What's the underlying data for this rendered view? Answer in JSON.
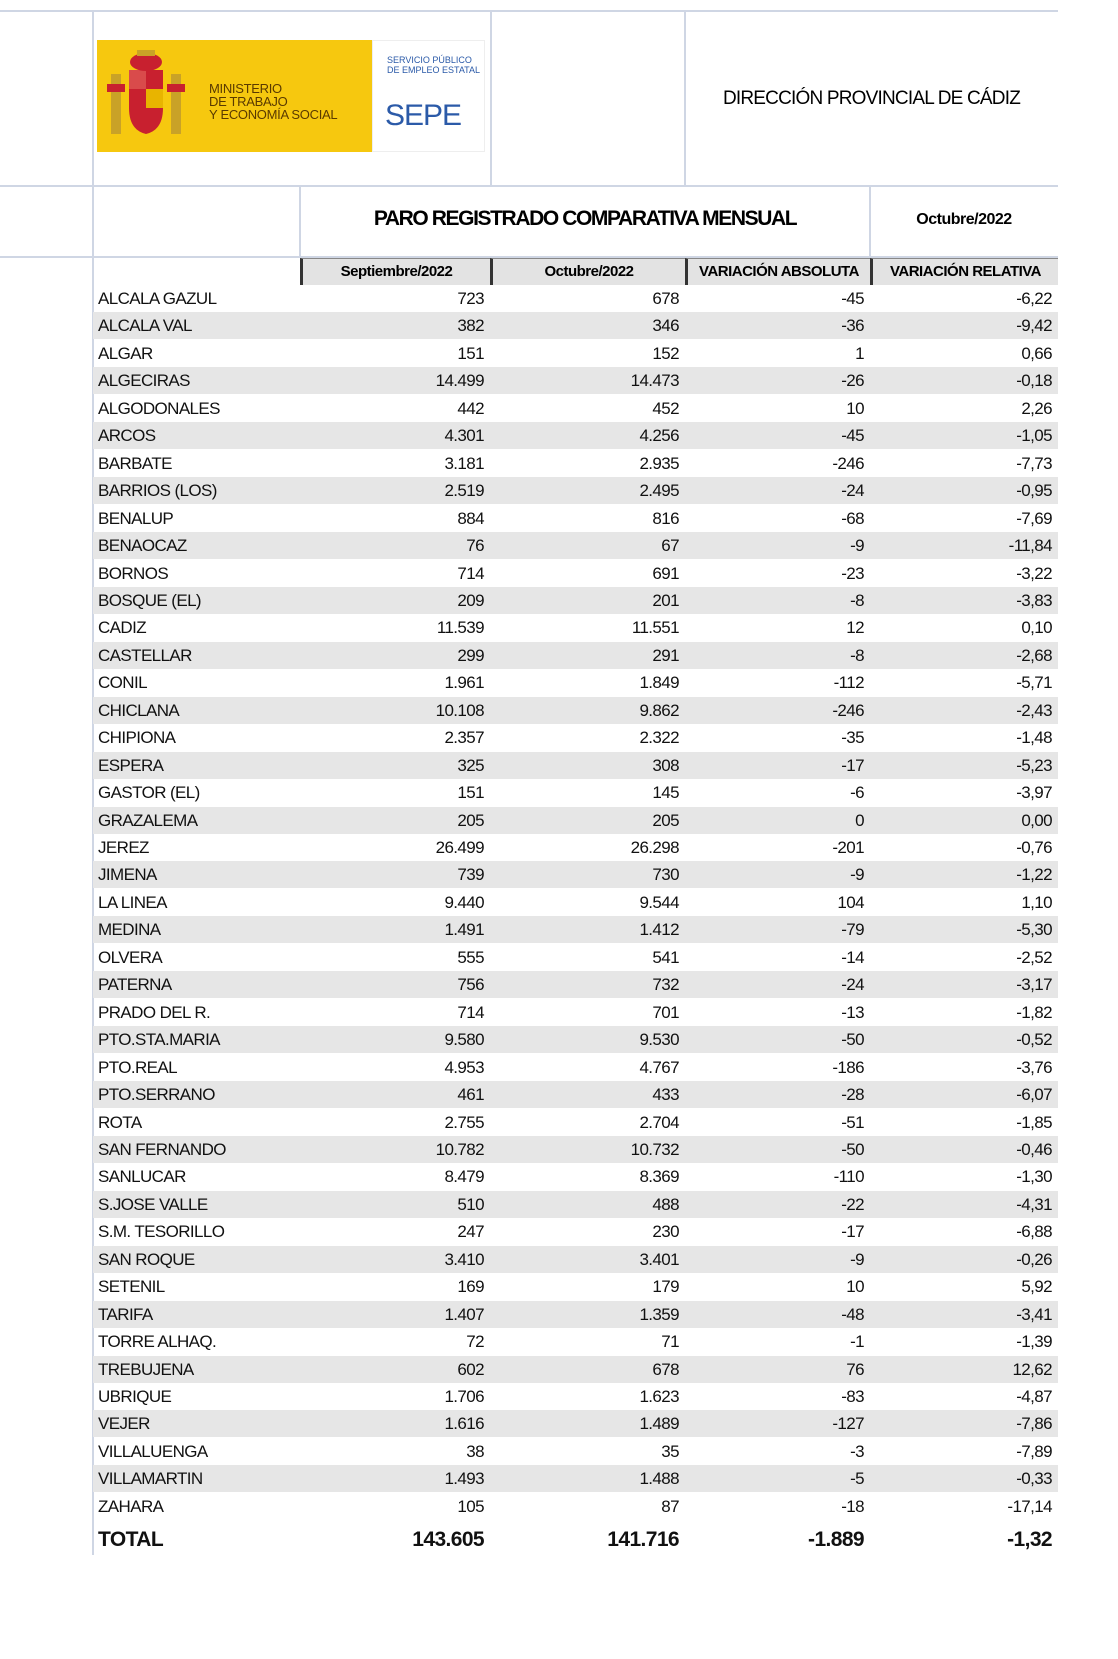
{
  "header": {
    "ministry": [
      "MINISTERIO",
      "DE TRABAJO",
      "Y ECONOMÍA SOCIAL"
    ],
    "service": [
      "SERVICIO PÚBLICO",
      "DE EMPLEO ESTATAL"
    ],
    "sepe": "SEPE",
    "office": "DIRECCIÓN PROVINCIAL DE CÁDIZ"
  },
  "table": {
    "title": "PARO REGISTRADO COMPARATIVA MENSUAL",
    "period": "Octubre/2022",
    "columns": [
      "Septiembre/2022",
      "Octubre/2022",
      "VARIACIÓN ABSOLUTA",
      "VARIACIÓN RELATIVA"
    ],
    "rows": [
      [
        "ALCALA GAZUL",
        "723",
        "678",
        "-45",
        "-6,22"
      ],
      [
        "ALCALA VAL",
        "382",
        "346",
        "-36",
        "-9,42"
      ],
      [
        "ALGAR",
        "151",
        "152",
        "1",
        "0,66"
      ],
      [
        "ALGECIRAS",
        "14.499",
        "14.473",
        "-26",
        "-0,18"
      ],
      [
        "ALGODONALES",
        "442",
        "452",
        "10",
        "2,26"
      ],
      [
        "ARCOS",
        "4.301",
        "4.256",
        "-45",
        "-1,05"
      ],
      [
        "BARBATE",
        "3.181",
        "2.935",
        "-246",
        "-7,73"
      ],
      [
        "BARRIOS (LOS)",
        "2.519",
        "2.495",
        "-24",
        "-0,95"
      ],
      [
        "BENALUP",
        "884",
        "816",
        "-68",
        "-7,69"
      ],
      [
        "BENAOCAZ",
        "76",
        "67",
        "-9",
        "-11,84"
      ],
      [
        "BORNOS",
        "714",
        "691",
        "-23",
        "-3,22"
      ],
      [
        "BOSQUE (EL)",
        "209",
        "201",
        "-8",
        "-3,83"
      ],
      [
        "CADIZ",
        "11.539",
        "11.551",
        "12",
        "0,10"
      ],
      [
        "CASTELLAR",
        "299",
        "291",
        "-8",
        "-2,68"
      ],
      [
        "CONIL",
        "1.961",
        "1.849",
        "-112",
        "-5,71"
      ],
      [
        "CHICLANA",
        "10.108",
        "9.862",
        "-246",
        "-2,43"
      ],
      [
        "CHIPIONA",
        "2.357",
        "2.322",
        "-35",
        "-1,48"
      ],
      [
        "ESPERA",
        "325",
        "308",
        "-17",
        "-5,23"
      ],
      [
        "GASTOR (EL)",
        "151",
        "145",
        "-6",
        "-3,97"
      ],
      [
        "GRAZALEMA",
        "205",
        "205",
        "0",
        "0,00"
      ],
      [
        "JEREZ",
        "26.499",
        "26.298",
        "-201",
        "-0,76"
      ],
      [
        "JIMENA",
        "739",
        "730",
        "-9",
        "-1,22"
      ],
      [
        "LA LINEA",
        "9.440",
        "9.544",
        "104",
        "1,10"
      ],
      [
        "MEDINA",
        "1.491",
        "1.412",
        "-79",
        "-5,30"
      ],
      [
        "OLVERA",
        "555",
        "541",
        "-14",
        "-2,52"
      ],
      [
        "PATERNA",
        "756",
        "732",
        "-24",
        "-3,17"
      ],
      [
        "PRADO DEL R.",
        "714",
        "701",
        "-13",
        "-1,82"
      ],
      [
        "PTO.STA.MARIA",
        "9.580",
        "9.530",
        "-50",
        "-0,52"
      ],
      [
        "PTO.REAL",
        "4.953",
        "4.767",
        "-186",
        "-3,76"
      ],
      [
        "PTO.SERRANO",
        "461",
        "433",
        "-28",
        "-6,07"
      ],
      [
        "ROTA",
        "2.755",
        "2.704",
        "-51",
        "-1,85"
      ],
      [
        "SAN FERNANDO",
        "10.782",
        "10.732",
        "-50",
        "-0,46"
      ],
      [
        "SANLUCAR",
        "8.479",
        "8.369",
        "-110",
        "-1,30"
      ],
      [
        "S.JOSE VALLE",
        "510",
        "488",
        "-22",
        "-4,31"
      ],
      [
        "S.M. TESORILLO",
        "247",
        "230",
        "-17",
        "-6,88"
      ],
      [
        "SAN ROQUE",
        "3.410",
        "3.401",
        "-9",
        "-0,26"
      ],
      [
        "SETENIL",
        "169",
        "179",
        "10",
        "5,92"
      ],
      [
        "TARIFA",
        "1.407",
        "1.359",
        "-48",
        "-3,41"
      ],
      [
        "TORRE ALHAQ.",
        "72",
        "71",
        "-1",
        "-1,39"
      ],
      [
        "TREBUJENA",
        "602",
        "678",
        "76",
        "12,62"
      ],
      [
        "UBRIQUE",
        "1.706",
        "1.623",
        "-83",
        "-4,87"
      ],
      [
        "VEJER",
        "1.616",
        "1.489",
        "-127",
        "-7,86"
      ],
      [
        "VILLALUENGA",
        "38",
        "35",
        "-3",
        "-7,89"
      ],
      [
        "VILLAMARTIN",
        "1.493",
        "1.488",
        "-5",
        "-0,33"
      ],
      [
        "ZAHARA",
        "105",
        "87",
        "-18",
        "-17,14"
      ]
    ],
    "total": [
      "TOTAL",
      "143.605",
      "141.716",
      "-1.889",
      "-1,32"
    ]
  }
}
